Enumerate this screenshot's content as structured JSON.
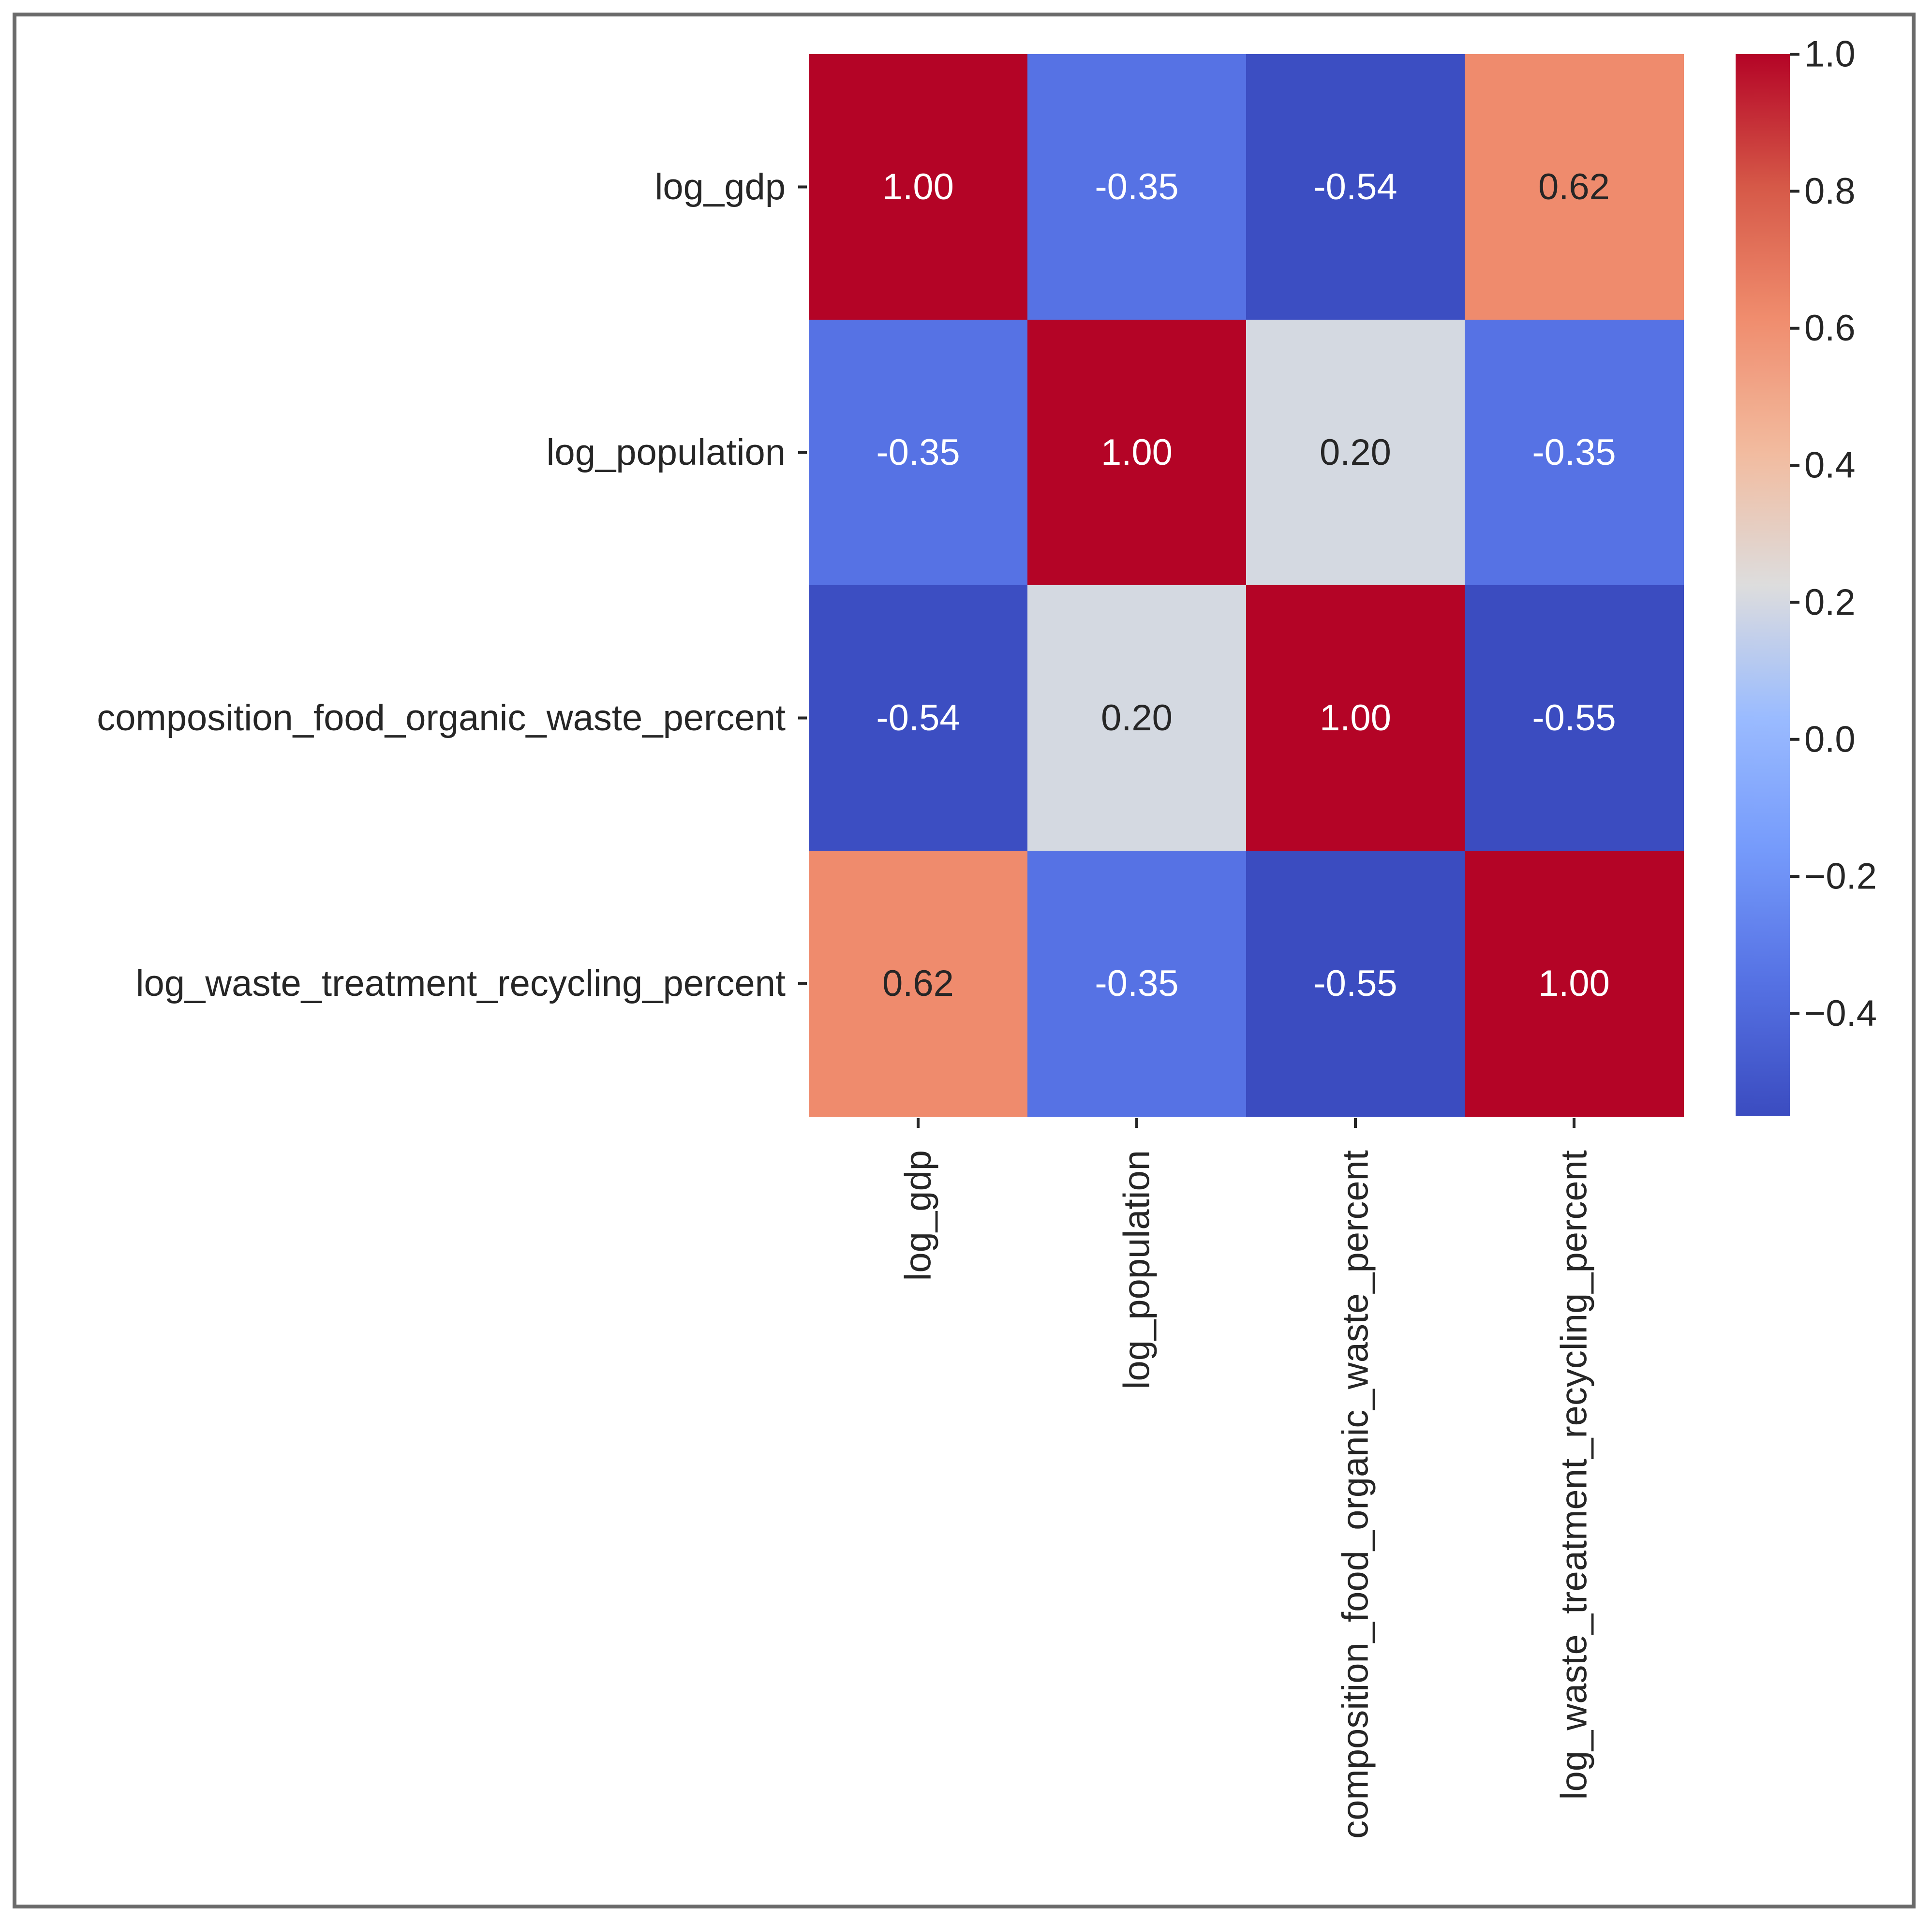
{
  "chart_data": {
    "type": "heatmap",
    "title": "",
    "xlabel": "",
    "ylabel": "",
    "row_labels": [
      "log_gdp",
      "log_population",
      "composition_food_organic_waste_percent",
      "log_waste_treatment_recycling_percent"
    ],
    "col_labels": [
      "log_gdp",
      "log_population",
      "composition_food_organic_waste_percent",
      "log_waste_treatment_recycling_percent"
    ],
    "values": [
      [
        1.0,
        -0.35,
        -0.54,
        0.62
      ],
      [
        -0.35,
        1.0,
        0.2,
        -0.35
      ],
      [
        -0.54,
        0.2,
        1.0,
        -0.55
      ],
      [
        0.62,
        -0.35,
        -0.55,
        1.0
      ]
    ],
    "cell_labels": [
      [
        "1.00",
        "-0.35",
        "-0.54",
        "0.62"
      ],
      [
        "-0.35",
        "1.00",
        "0.20",
        "-0.35"
      ],
      [
        "-0.54",
        "0.20",
        "1.00",
        "-0.55"
      ],
      [
        "0.62",
        "-0.35",
        "-0.55",
        "1.00"
      ]
    ],
    "colormap": "coolwarm",
    "colorbar": {
      "range": [
        -0.55,
        1.0
      ],
      "ticks": [
        1.0,
        0.8,
        0.6,
        0.4,
        0.2,
        0.0,
        -0.2,
        -0.4
      ],
      "tick_labels": [
        "1.0",
        "0.8",
        "0.6",
        "0.4",
        "0.2",
        "0.0",
        "−0.2",
        "−0.4"
      ]
    }
  }
}
